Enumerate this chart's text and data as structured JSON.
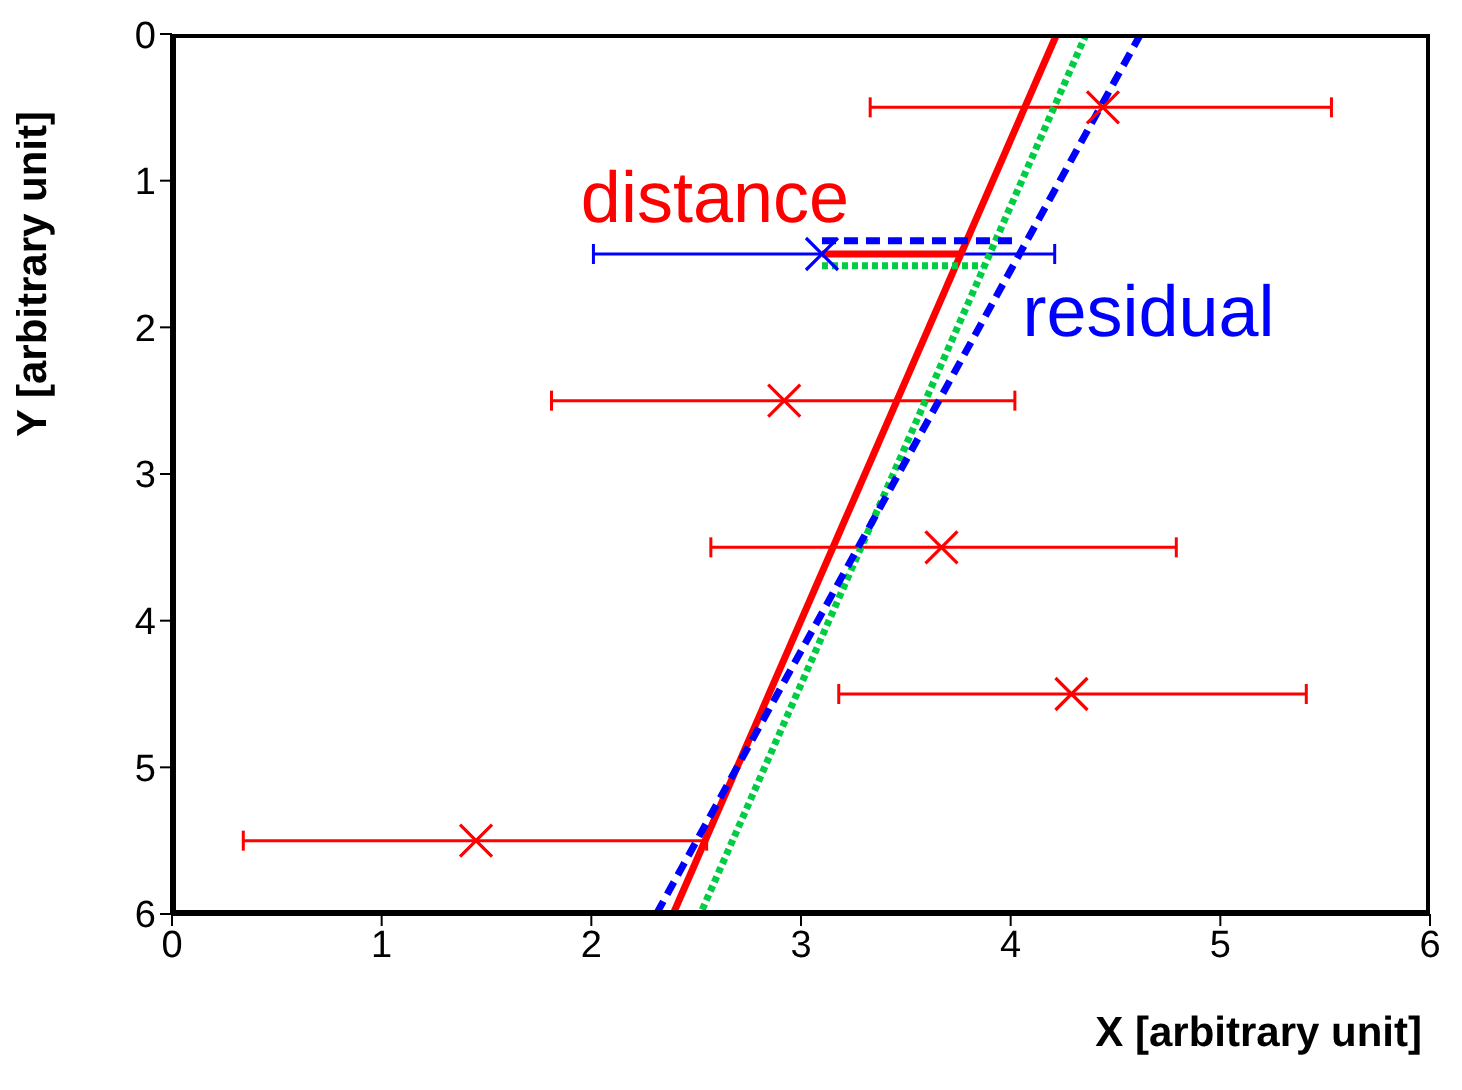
{
  "chart_data": {
    "type": "scatter",
    "xlabel": "X [arbitrary unit]",
    "ylabel": "Y [arbitrary unit]",
    "xlim": [
      0,
      6
    ],
    "xticks": [
      0,
      1,
      2,
      3,
      4,
      5,
      6
    ],
    "ylim": [
      6,
      0
    ],
    "yticks": [
      0,
      1,
      2,
      3,
      4,
      5,
      6
    ],
    "grid": false,
    "legend": false,
    "series": [
      {
        "type": "scatter",
        "marker": "cross",
        "color": "#ff0000",
        "x": [
          4.44,
          2.92,
          3.67,
          4.29,
          1.45
        ],
        "values": [
          0.5,
          2.5,
          3.5,
          4.5,
          5.5
        ],
        "xerrors": [
          [
            3.33,
            5.53
          ],
          [
            1.81,
            4.02
          ],
          [
            2.57,
            4.79
          ],
          [
            3.18,
            5.41
          ],
          [
            0.34,
            2.55
          ]
        ]
      },
      {
        "type": "scatter",
        "marker": "cross",
        "color": "#0000ff",
        "x": [
          3.1
        ],
        "values": [
          1.5
        ],
        "xerrors": [
          [
            2.01,
            4.21
          ]
        ]
      },
      {
        "type": "line",
        "line_style": "solid",
        "color": "#ff0000",
        "x": [
          4.22,
          2.39
        ],
        "values": [
          0,
          6
        ]
      },
      {
        "type": "line",
        "line_style": "dotted",
        "color": "#00cc44",
        "x": [
          4.36,
          2.52
        ],
        "values": [
          0,
          6
        ]
      },
      {
        "type": "line",
        "line_style": "dashed",
        "color": "#0000ff",
        "x": [
          4.62,
          2.31
        ],
        "values": [
          0,
          6
        ]
      },
      {
        "type": "line",
        "line_style": "solid",
        "color": "#ff0000",
        "x": [
          3.1,
          3.76
        ],
        "values": [
          1.5,
          1.5
        ]
      },
      {
        "type": "line",
        "line_style": "dashed",
        "color": "#0000ff",
        "x": [
          3.1,
          4.04
        ],
        "values": [
          1.41,
          1.41
        ]
      },
      {
        "type": "line",
        "line_style": "dotted",
        "color": "#00cc44",
        "x": [
          3.1,
          3.87
        ],
        "values": [
          1.58,
          1.58
        ]
      }
    ],
    "annotations": [
      "distance",
      "residual"
    ]
  }
}
